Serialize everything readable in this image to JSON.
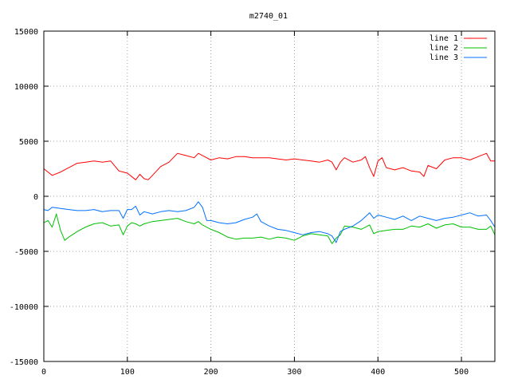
{
  "chart_data": {
    "type": "line",
    "title": "m2740_01",
    "xlabel": "",
    "ylabel": "",
    "xlim": [
      0,
      540
    ],
    "ylim": [
      -15000,
      15000
    ],
    "xticks": [
      0,
      100,
      200,
      300,
      400,
      500
    ],
    "yticks": [
      -15000,
      -10000,
      -5000,
      0,
      5000,
      10000,
      15000
    ],
    "grid": true,
    "legend_position": "top-right",
    "series": [
      {
        "name": "line 1",
        "color": "#ff0000",
        "x": [
          0,
          5,
          10,
          20,
          30,
          40,
          50,
          60,
          70,
          80,
          90,
          95,
          100,
          105,
          110,
          115,
          120,
          125,
          130,
          140,
          150,
          160,
          170,
          180,
          185,
          190,
          200,
          210,
          220,
          230,
          240,
          250,
          260,
          270,
          280,
          290,
          300,
          310,
          320,
          330,
          340,
          345,
          350,
          355,
          360,
          370,
          380,
          385,
          390,
          395,
          400,
          405,
          410,
          420,
          430,
          440,
          450,
          455,
          460,
          470,
          480,
          490,
          500,
          510,
          520,
          530,
          535,
          540
        ],
        "y": [
          2500,
          2200,
          1900,
          2200,
          2600,
          3000,
          3100,
          3200,
          3100,
          3200,
          2300,
          2200,
          2100,
          1800,
          1500,
          2000,
          1600,
          1500,
          1900,
          2700,
          3100,
          3900,
          3700,
          3500,
          3900,
          3700,
          3300,
          3500,
          3400,
          3600,
          3600,
          3500,
          3500,
          3500,
          3400,
          3300,
          3400,
          3300,
          3200,
          3100,
          3300,
          3100,
          2400,
          3100,
          3500,
          3100,
          3300,
          3600,
          2600,
          1800,
          3200,
          3500,
          2600,
          2400,
          2600,
          2300,
          2200,
          1800,
          2800,
          2500,
          3300,
          3500,
          3500,
          3300,
          3600,
          3900,
          3200,
          3200
        ]
      },
      {
        "name": "line 2",
        "color": "#00c000",
        "x": [
          0,
          5,
          10,
          15,
          20,
          25,
          30,
          40,
          50,
          60,
          70,
          80,
          90,
          95,
          100,
          105,
          110,
          115,
          120,
          130,
          140,
          150,
          160,
          170,
          180,
          185,
          190,
          200,
          210,
          220,
          230,
          240,
          250,
          260,
          270,
          280,
          290,
          300,
          310,
          320,
          330,
          340,
          345,
          350,
          355,
          360,
          370,
          380,
          390,
          395,
          400,
          410,
          420,
          430,
          440,
          450,
          460,
          470,
          480,
          490,
          500,
          510,
          520,
          530,
          535,
          540
        ],
        "y": [
          -2400,
          -2200,
          -2800,
          -1600,
          -3100,
          -4000,
          -3700,
          -3200,
          -2800,
          -2500,
          -2400,
          -2700,
          -2600,
          -3500,
          -2700,
          -2400,
          -2500,
          -2700,
          -2500,
          -2300,
          -2200,
          -2100,
          -2000,
          -2300,
          -2500,
          -2300,
          -2600,
          -3000,
          -3300,
          -3700,
          -3900,
          -3800,
          -3800,
          -3700,
          -3900,
          -3700,
          -3800,
          -4000,
          -3600,
          -3400,
          -3500,
          -3600,
          -4300,
          -3800,
          -3500,
          -2700,
          -2800,
          -3000,
          -2600,
          -3400,
          -3200,
          -3100,
          -3000,
          -3000,
          -2700,
          -2800,
          -2500,
          -2900,
          -2600,
          -2500,
          -2800,
          -2800,
          -3000,
          -3000,
          -2700,
          -3500
        ]
      },
      {
        "name": "line 3",
        "color": "#0070ff",
        "x": [
          0,
          5,
          10,
          20,
          30,
          40,
          50,
          60,
          70,
          80,
          90,
          95,
          100,
          105,
          110,
          115,
          120,
          130,
          140,
          150,
          160,
          170,
          180,
          185,
          190,
          195,
          200,
          210,
          220,
          230,
          240,
          250,
          255,
          260,
          270,
          280,
          290,
          300,
          310,
          320,
          330,
          340,
          345,
          350,
          355,
          360,
          370,
          380,
          390,
          395,
          400,
          410,
          420,
          430,
          440,
          450,
          460,
          470,
          480,
          490,
          500,
          510,
          520,
          530,
          535,
          540
        ],
        "y": [
          -1200,
          -1300,
          -1000,
          -1100,
          -1200,
          -1300,
          -1300,
          -1200,
          -1400,
          -1300,
          -1300,
          -2000,
          -1200,
          -1200,
          -900,
          -1700,
          -1400,
          -1600,
          -1400,
          -1300,
          -1400,
          -1300,
          -1000,
          -500,
          -1000,
          -2200,
          -2200,
          -2400,
          -2500,
          -2400,
          -2100,
          -1900,
          -1600,
          -2300,
          -2700,
          -3000,
          -3100,
          -3300,
          -3500,
          -3300,
          -3200,
          -3400,
          -3600,
          -4200,
          -3200,
          -3000,
          -2700,
          -2200,
          -1500,
          -2000,
          -1700,
          -1900,
          -2100,
          -1800,
          -2200,
          -1800,
          -2000,
          -2200,
          -2000,
          -1900,
          -1700,
          -1500,
          -1800,
          -1700,
          -2200,
          -2800
        ]
      }
    ]
  }
}
